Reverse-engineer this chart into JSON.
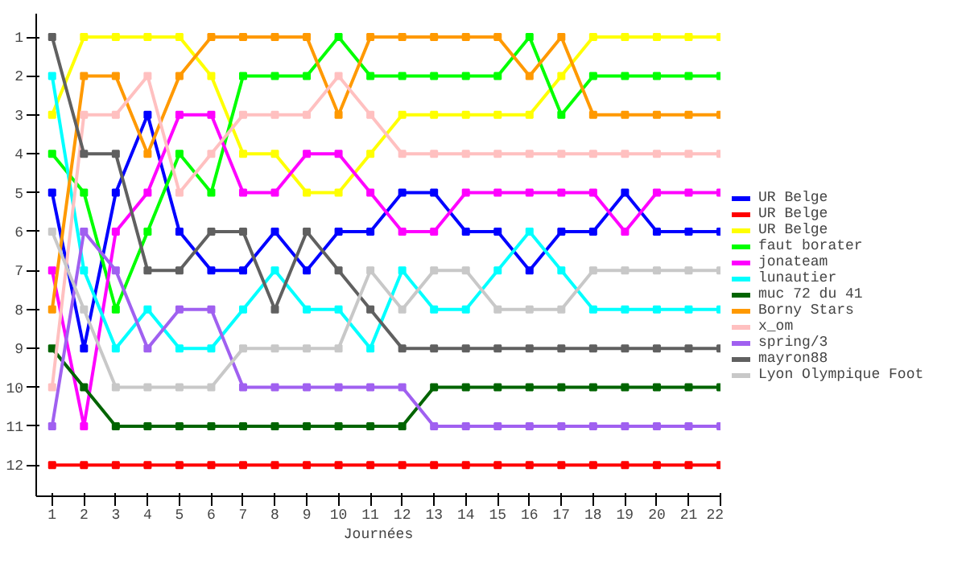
{
  "chart_data": {
    "type": "line",
    "xlabel": "Journées",
    "x": [
      1,
      2,
      3,
      4,
      5,
      6,
      7,
      8,
      9,
      10,
      11,
      12,
      13,
      14,
      15,
      16,
      17,
      18,
      19,
      20,
      21,
      22
    ],
    "xlim": [
      0.5,
      22
    ],
    "xticks": [
      1,
      2,
      3,
      4,
      5,
      6,
      7,
      8,
      9,
      10,
      11,
      12,
      13,
      14,
      15,
      16,
      17,
      18,
      19,
      20,
      21,
      22
    ],
    "ylim": [
      12.8,
      0.4
    ],
    "yticks": [
      1,
      2,
      3,
      4,
      5,
      6,
      7,
      8,
      9,
      10,
      11,
      12
    ],
    "grid": false,
    "legend": "right",
    "marker": "square",
    "line_style": "solid",
    "series": [
      {
        "name": "UR Belge",
        "color": "#0000ff",
        "values": [
          5,
          9,
          5,
          3,
          6,
          7,
          7,
          6,
          7,
          6,
          6,
          5,
          5,
          6,
          6,
          7,
          6,
          6,
          5,
          6,
          6,
          6
        ]
      },
      {
        "name": "UR Belge",
        "color": "#ff0000",
        "values": [
          12,
          12,
          12,
          12,
          12,
          12,
          12,
          12,
          12,
          12,
          12,
          12,
          12,
          12,
          12,
          12,
          12,
          12,
          12,
          12,
          12,
          12
        ]
      },
      {
        "name": "UR Belge",
        "color": "#ffff00",
        "values": [
          3,
          1,
          1,
          1,
          1,
          2,
          4,
          4,
          5,
          5,
          4,
          3,
          3,
          3,
          3,
          3,
          2,
          1,
          1,
          1,
          1,
          1
        ]
      },
      {
        "name": "faut borater",
        "color": "#00ff00",
        "values": [
          4,
          5,
          8,
          6,
          4,
          5,
          2,
          2,
          2,
          1,
          2,
          2,
          2,
          2,
          2,
          1,
          3,
          2,
          2,
          2,
          2,
          2
        ]
      },
      {
        "name": "jonateam",
        "color": "#ff00ff",
        "values": [
          7,
          11,
          6,
          5,
          3,
          3,
          5,
          5,
          4,
          4,
          5,
          6,
          6,
          5,
          5,
          5,
          5,
          5,
          6,
          5,
          5,
          5
        ]
      },
      {
        "name": "lunautier",
        "color": "#00ffff",
        "values": [
          2,
          7,
          9,
          8,
          9,
          9,
          8,
          7,
          8,
          8,
          9,
          7,
          8,
          8,
          7,
          6,
          7,
          8,
          8,
          8,
          8,
          8
        ]
      },
      {
        "name": "muc 72 du 41",
        "color": "#006400",
        "values": [
          9,
          10,
          11,
          11,
          11,
          11,
          11,
          11,
          11,
          11,
          11,
          11,
          10,
          10,
          10,
          10,
          10,
          10,
          10,
          10,
          10,
          10
        ]
      },
      {
        "name": "Borny Stars",
        "color": "#ff9900",
        "values": [
          8,
          2,
          2,
          4,
          2,
          1,
          1,
          1,
          1,
          3,
          1,
          1,
          1,
          1,
          1,
          2,
          1,
          3,
          3,
          3,
          3,
          3
        ]
      },
      {
        "name": "x_om",
        "color": "#ffc0c0",
        "values": [
          10,
          3,
          3,
          2,
          5,
          4,
          3,
          3,
          3,
          2,
          3,
          4,
          4,
          4,
          4,
          4,
          4,
          4,
          4,
          4,
          4,
          4
        ]
      },
      {
        "name": "spring/3",
        "color": "#a060f0",
        "values": [
          11,
          6,
          7,
          9,
          8,
          8,
          10,
          10,
          10,
          10,
          10,
          10,
          11,
          11,
          11,
          11,
          11,
          11,
          11,
          11,
          11,
          11
        ]
      },
      {
        "name": "mayron88",
        "color": "#606060",
        "values": [
          1,
          4,
          4,
          7,
          7,
          6,
          6,
          8,
          6,
          7,
          8,
          9,
          9,
          9,
          9,
          9,
          9,
          9,
          9,
          9,
          9,
          9
        ]
      },
      {
        "name": "Lyon Olympique Foot",
        "color": "#c8c8c8",
        "values": [
          6,
          8,
          10,
          10,
          10,
          10,
          9,
          9,
          9,
          9,
          7,
          8,
          7,
          7,
          8,
          8,
          8,
          7,
          7,
          7,
          7,
          7
        ]
      }
    ]
  }
}
